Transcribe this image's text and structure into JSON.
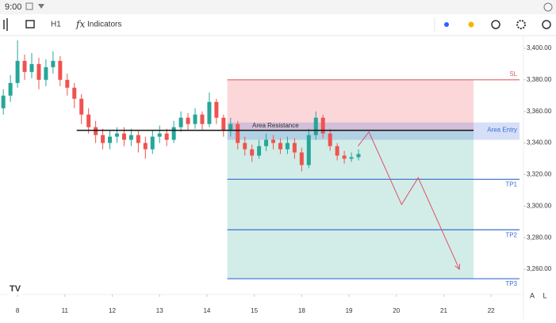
{
  "toolbar": {
    "time": "9:00",
    "timeframe": "H1",
    "indicators": "Indicators"
  },
  "scale_buttons": [
    "A",
    "L"
  ],
  "chart_data": {
    "type": "candlestick",
    "x": [
      -0.3,
      -0.15,
      0,
      0.15,
      0.3,
      0.45,
      0.6,
      0.75,
      0.9,
      1.05,
      1.2,
      1.35,
      1.5,
      1.65,
      1.8,
      1.95,
      2.1,
      2.25,
      2.4,
      2.55,
      2.7,
      2.85,
      3.0,
      3.15,
      3.3,
      3.45,
      3.6,
      3.75,
      3.9,
      4.05,
      4.2,
      4.35,
      4.5,
      4.65,
      4.8,
      4.95,
      5.1,
      5.25,
      5.4,
      5.55,
      5.7,
      5.85,
      6.0,
      6.15,
      6.3,
      6.45,
      6.6,
      6.75,
      6.9,
      7.05,
      7.2
    ],
    "open": [
      3362,
      3370,
      3378,
      3392,
      3385,
      3390,
      3380,
      3388,
      3392,
      3380,
      3375,
      3368,
      3358,
      3350,
      3345,
      3340,
      3344,
      3346,
      3342,
      3345,
      3340,
      3336,
      3344,
      3346,
      3342,
      3350,
      3356,
      3352,
      3358,
      3352,
      3366,
      3356,
      3348,
      3352,
      3340,
      3336,
      3332,
      3338,
      3342,
      3340,
      3336,
      3340,
      3334,
      3326,
      3345,
      3356,
      3346,
      3338,
      3332,
      3330,
      3331
    ],
    "high": [
      3374,
      3383,
      3405,
      3396,
      3397,
      3394,
      3393,
      3398,
      3395,
      3384,
      3378,
      3371,
      3362,
      3354,
      3349,
      3348,
      3350,
      3350,
      3349,
      3348,
      3344,
      3348,
      3351,
      3349,
      3354,
      3360,
      3359,
      3362,
      3360,
      3372,
      3368,
      3358,
      3356,
      3354,
      3344,
      3339,
      3342,
      3346,
      3345,
      3343,
      3344,
      3343,
      3337,
      3349,
      3360,
      3358,
      3349,
      3340,
      3335,
      3334,
      3336
    ],
    "low": [
      3358,
      3366,
      3375,
      3380,
      3381,
      3374,
      3376,
      3384,
      3376,
      3370,
      3362,
      3352,
      3346,
      3340,
      3336,
      3336,
      3340,
      3338,
      3338,
      3334,
      3330,
      3333,
      3340,
      3338,
      3340,
      3347,
      3348,
      3349,
      3348,
      3350,
      3352,
      3344,
      3344,
      3336,
      3332,
      3328,
      3330,
      3335,
      3336,
      3333,
      3333,
      3330,
      3322,
      3324,
      3342,
      3343,
      3335,
      3329,
      3327,
      3328,
      3329
    ],
    "close": [
      3370,
      3378,
      3392,
      3385,
      3390,
      3380,
      3388,
      3392,
      3380,
      3375,
      3368,
      3358,
      3350,
      3345,
      3340,
      3344,
      3346,
      3342,
      3345,
      3340,
      3336,
      3344,
      3346,
      3342,
      3350,
      3356,
      3352,
      3358,
      3352,
      3366,
      3356,
      3348,
      3352,
      3340,
      3336,
      3332,
      3338,
      3342,
      3340,
      3336,
      3340,
      3334,
      3326,
      3345,
      3356,
      3346,
      3338,
      3332,
      3330,
      3331,
      3333
    ],
    "up_color": "#26a69a",
    "down_color": "#ef5350",
    "xlim": [
      -0.37,
      10.6
    ],
    "xticks": [
      {
        "value": 0,
        "label": "8"
      },
      {
        "value": 1,
        "label": "11"
      },
      {
        "value": 2,
        "label": "12"
      },
      {
        "value": 3,
        "label": "13"
      },
      {
        "value": 4,
        "label": "14"
      },
      {
        "value": 5,
        "label": "15"
      },
      {
        "value": 6,
        "label": "18"
      },
      {
        "value": 7,
        "label": "19"
      },
      {
        "value": 8,
        "label": "20"
      },
      {
        "value": 9,
        "label": "21"
      },
      {
        "value": 10,
        "label": "22"
      }
    ],
    "ylim": [
      3244,
      3408
    ],
    "yticks": [
      {
        "value": 3260,
        "label": "3,260.00"
      },
      {
        "value": 3280,
        "label": "3,280.00"
      },
      {
        "value": 3300,
        "label": "3,300.00"
      },
      {
        "value": 3320,
        "label": "3,320.00"
      },
      {
        "value": 3340,
        "label": "3,340.00"
      },
      {
        "value": 3360,
        "label": "3,360.00"
      },
      {
        "value": 3380,
        "label": "3,380.00"
      },
      {
        "value": 3400,
        "label": "3,400.00"
      }
    ],
    "zone_x": [
      4.43,
      9.63
    ],
    "levels": [
      {
        "name": "SL",
        "value": 3380,
        "color": "#e06060"
      },
      {
        "name": "TP1",
        "value": 3317,
        "color": "#3a6fd0"
      },
      {
        "name": "TP2",
        "value": 3285,
        "color": "#3a6fd0"
      },
      {
        "name": "TP3",
        "value": 3254,
        "color": "#3a6fd0"
      }
    ],
    "entry": {
      "name": "Area Entry",
      "low": 3342,
      "high": 3353,
      "line": 3348,
      "line_start": 1.25,
      "label": "Area Resistance"
    },
    "projection": {
      "x": [
        7.19,
        7.42,
        8.11,
        8.46,
        9.33
      ],
      "y": [
        3338,
        3347,
        3301,
        3318,
        3260
      ],
      "color": "#e0506a"
    }
  }
}
